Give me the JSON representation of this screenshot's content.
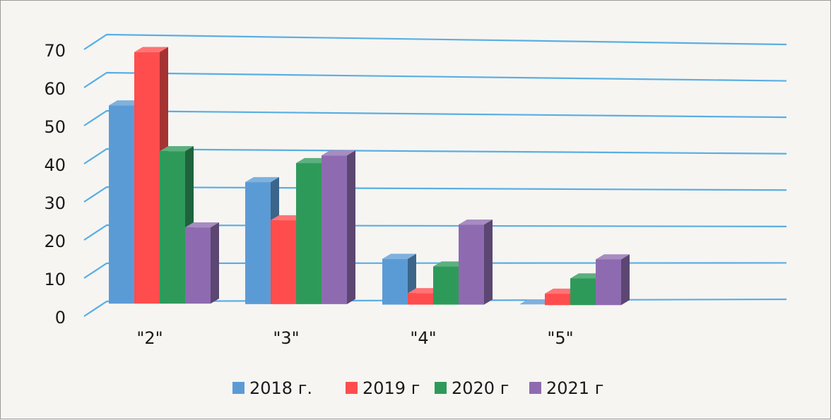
{
  "chart_data": {
    "type": "bar",
    "categories": [
      "\"2\"",
      "\"3\"",
      "\"4\"",
      "\"5\""
    ],
    "series": [
      {
        "name": "2018 г.",
        "color": "#5b9bd5",
        "values": [
          52,
          32,
          12,
          0
        ]
      },
      {
        "name": "2019 г",
        "color": "#ff4d4d",
        "values": [
          66,
          22,
          3,
          3
        ]
      },
      {
        "name": "2020 г",
        "color": "#2e9a5a",
        "values": [
          40,
          37,
          10,
          7
        ]
      },
      {
        "name": "2021 г",
        "color": "#8e6bb0",
        "values": [
          20,
          39,
          21,
          12
        ]
      }
    ],
    "yticks": [
      "0",
      "10",
      "20",
      "30",
      "40",
      "50",
      "60",
      "70"
    ],
    "ylim": [
      0,
      70
    ],
    "grid": true,
    "legend_position": "bottom",
    "gridline_color": "#5aaee3",
    "title": "",
    "xlabel": "",
    "ylabel": ""
  }
}
